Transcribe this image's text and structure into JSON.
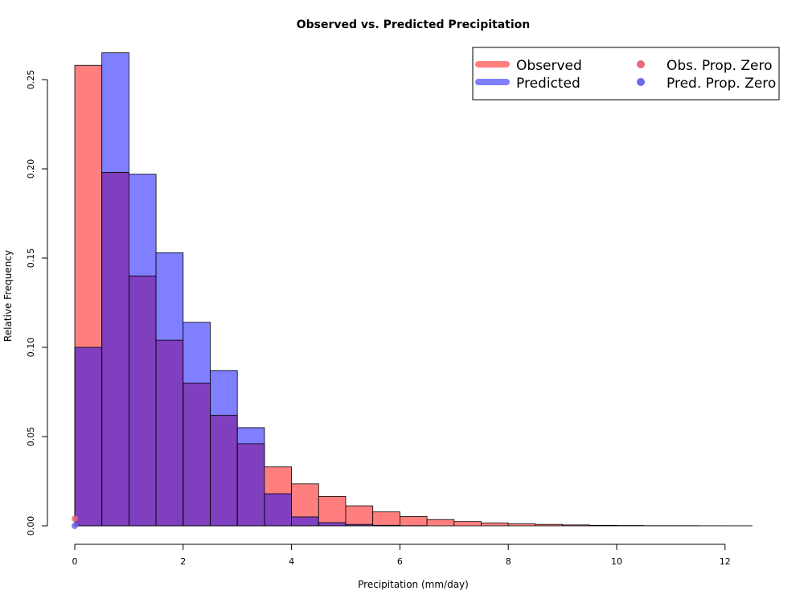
{
  "chart_data": {
    "type": "bar",
    "title": "Observed vs. Predicted Precipitation",
    "xlabel": "Precipitation (mm/day)",
    "ylabel": "Relative Frequency",
    "xlim": [
      0,
      12.5
    ],
    "ylim": [
      0,
      0.27
    ],
    "x_ticks": [
      "0",
      "2",
      "4",
      "6",
      "8",
      "10",
      "12"
    ],
    "y_ticks": [
      "0.00",
      "0.05",
      "0.10",
      "0.15",
      "0.20",
      "0.25"
    ],
    "bin_edges": [
      0,
      0.5,
      1.0,
      1.5,
      2.0,
      2.5,
      3.0,
      3.5,
      4.0,
      4.5,
      5.0,
      5.5,
      6.0,
      6.5,
      7.0,
      7.5,
      8.0,
      8.5,
      9.0,
      9.5,
      10.0,
      10.5,
      11.0,
      11.5,
      12.0,
      12.5
    ],
    "series": [
      {
        "name": "Observed",
        "color": "#ff7f7f",
        "values": [
          0.258,
          0.198,
          0.14,
          0.104,
          0.08,
          0.062,
          0.046,
          0.033,
          0.0235,
          0.0165,
          0.0112,
          0.0078,
          0.0052,
          0.0035,
          0.0024,
          0.0016,
          0.0011,
          0.0008,
          0.0005,
          0.0003,
          0.0002,
          0.0001,
          0.0001,
          5e-05,
          3e-05
        ]
      },
      {
        "name": "Predicted",
        "color": "#7f7fff",
        "values": [
          0.1,
          0.265,
          0.197,
          0.153,
          0.114,
          0.087,
          0.055,
          0.018,
          0.005,
          0.0018,
          0.0008,
          0.0003,
          0.0001,
          0.0,
          0.0,
          0.0,
          0.0,
          0.0,
          0.0,
          0.0,
          0.0,
          0.0,
          0.0,
          0.0,
          0.0
        ]
      }
    ],
    "prop_zero_points": [
      {
        "name": "Obs. Prop. Zero",
        "x": 0,
        "y": 0.004,
        "color": "#e86a78"
      },
      {
        "name": "Pred. Prop. Zero",
        "x": 0,
        "y": 0.0,
        "color": "#6a6af0"
      }
    ],
    "overlap_color": "#7f3fbf",
    "legend_position": "top-right",
    "grid": false
  },
  "legend": {
    "observed": "Observed",
    "predicted": "Predicted",
    "obs_prop_zero": "Obs. Prop. Zero",
    "pred_prop_zero": "Pred. Prop. Zero"
  }
}
